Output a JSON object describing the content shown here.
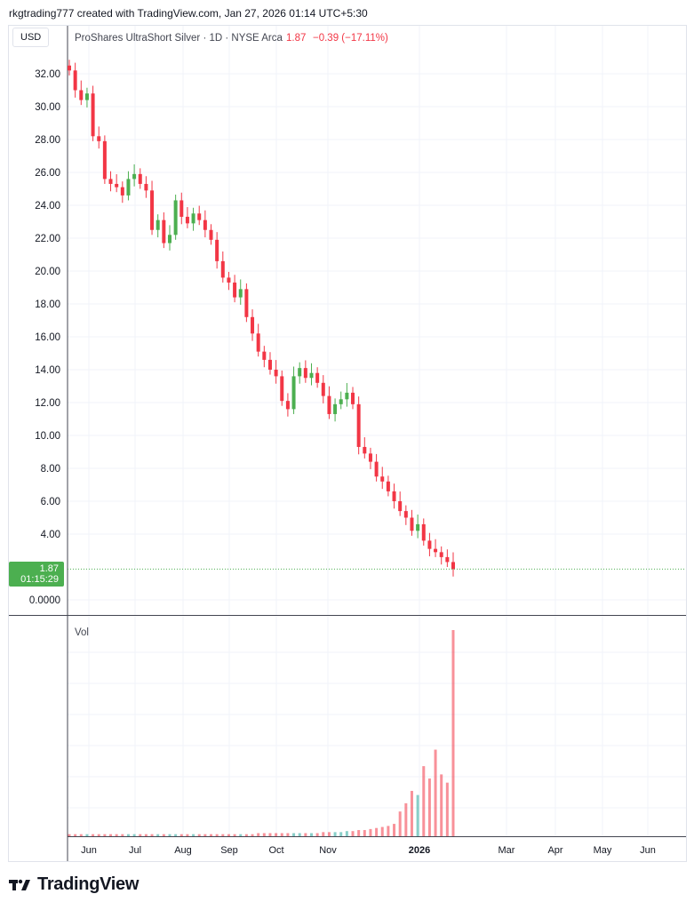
{
  "header": {
    "caption": "rkgtrading777 created with TradingView.com, Jan 27, 2026 01:14 UTC+5:30"
  },
  "legend": {
    "currency": "USD",
    "symbol": "ProShares UltraShort Silver · 1D · NYSE Arca",
    "last": "1.87",
    "change": "−0.39 (−17.11%)"
  },
  "badge": {
    "price": "1.87",
    "countdown": "01:15:29"
  },
  "footer": {
    "brand": "TradingView"
  },
  "colors": {
    "up": "#26a69a",
    "up_candle": "#4caf50",
    "down": "#f23645",
    "grid": "#f0f3fa",
    "text": "#131722"
  },
  "chart_data": {
    "type": "candlestick",
    "y_ticks": [
      "32.00",
      "30.00",
      "28.00",
      "26.00",
      "24.00",
      "22.00",
      "20.00",
      "18.00",
      "16.00",
      "14.00",
      "12.00",
      "10.00",
      "8.00",
      "6.00",
      "4.00",
      "0.0000"
    ],
    "x_ticks": [
      "Jun",
      "Jul",
      "Aug",
      "Sep",
      "Oct",
      "Nov",
      "2026",
      "Mar",
      "Apr",
      "May",
      "Jun"
    ],
    "ylim": [
      0,
      33.5
    ],
    "last_price": 1.87,
    "volume_label": "Vol",
    "approx_closes": [
      32.2,
      31.0,
      30.4,
      30.8,
      28.2,
      27.9,
      25.6,
      25.3,
      25.1,
      24.6,
      25.6,
      25.9,
      25.3,
      24.9,
      22.5,
      23.1,
      21.7,
      22.2,
      24.3,
      23.3,
      22.9,
      23.5,
      23.1,
      22.5,
      21.9,
      20.6,
      19.6,
      19.3,
      18.4,
      18.9,
      17.2,
      16.2,
      15.1,
      14.6,
      14.0,
      13.6,
      12.1,
      11.6,
      13.6,
      14.1,
      13.5,
      13.8,
      13.2,
      12.4,
      11.3,
      11.9,
      12.2,
      12.6,
      11.9,
      9.3,
      8.9,
      8.4,
      7.5,
      7.2,
      6.6,
      6.0,
      5.4,
      5.0,
      4.2,
      4.6,
      3.6,
      3.1,
      2.9,
      2.6,
      2.3,
      1.87
    ],
    "approx_volume_rel": [
      0.01,
      0.01,
      0.01,
      0.01,
      0.01,
      0.01,
      0.01,
      0.01,
      0.01,
      0.01,
      0.01,
      0.01,
      0.01,
      0.01,
      0.01,
      0.01,
      0.01,
      0.01,
      0.01,
      0.01,
      0.01,
      0.01,
      0.01,
      0.01,
      0.01,
      0.01,
      0.01,
      0.01,
      0.01,
      0.01,
      0.01,
      0.01,
      0.015,
      0.015,
      0.015,
      0.015,
      0.015,
      0.015,
      0.015,
      0.015,
      0.015,
      0.015,
      0.015,
      0.02,
      0.02,
      0.02,
      0.02,
      0.025,
      0.025,
      0.03,
      0.03,
      0.035,
      0.04,
      0.045,
      0.05,
      0.06,
      0.12,
      0.16,
      0.22,
      0.2,
      0.34,
      0.28,
      0.42,
      0.3,
      0.26,
      1.0
    ]
  }
}
